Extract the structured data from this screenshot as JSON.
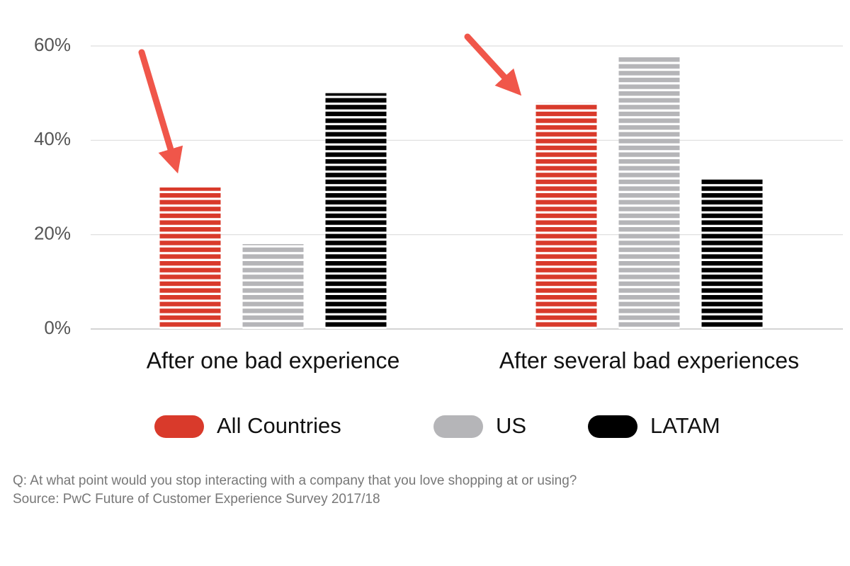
{
  "chart_data": {
    "type": "bar",
    "categories": [
      "After one bad experience",
      "After several bad experiences"
    ],
    "series": [
      {
        "name": "All Countries",
        "color": "#d93a2b",
        "values": [
          30,
          48
        ]
      },
      {
        "name": "US",
        "color": "#b5b5b8",
        "values": [
          18,
          58
        ]
      },
      {
        "name": "LATAM",
        "color": "#000000",
        "values": [
          50,
          32
        ]
      }
    ],
    "ylim": [
      0,
      60
    ],
    "yticks": [
      {
        "value": 0,
        "label": "0%"
      },
      {
        "value": 20,
        "label": "20%"
      },
      {
        "value": 40,
        "label": "40%"
      },
      {
        "value": 60,
        "label": "60%"
      }
    ],
    "grid": true,
    "notes": [
      "Q: At what point would you stop interacting with a company that you love shopping at or using?",
      "Source: PwC Future of Customer Experience Survey 2017/18"
    ]
  }
}
